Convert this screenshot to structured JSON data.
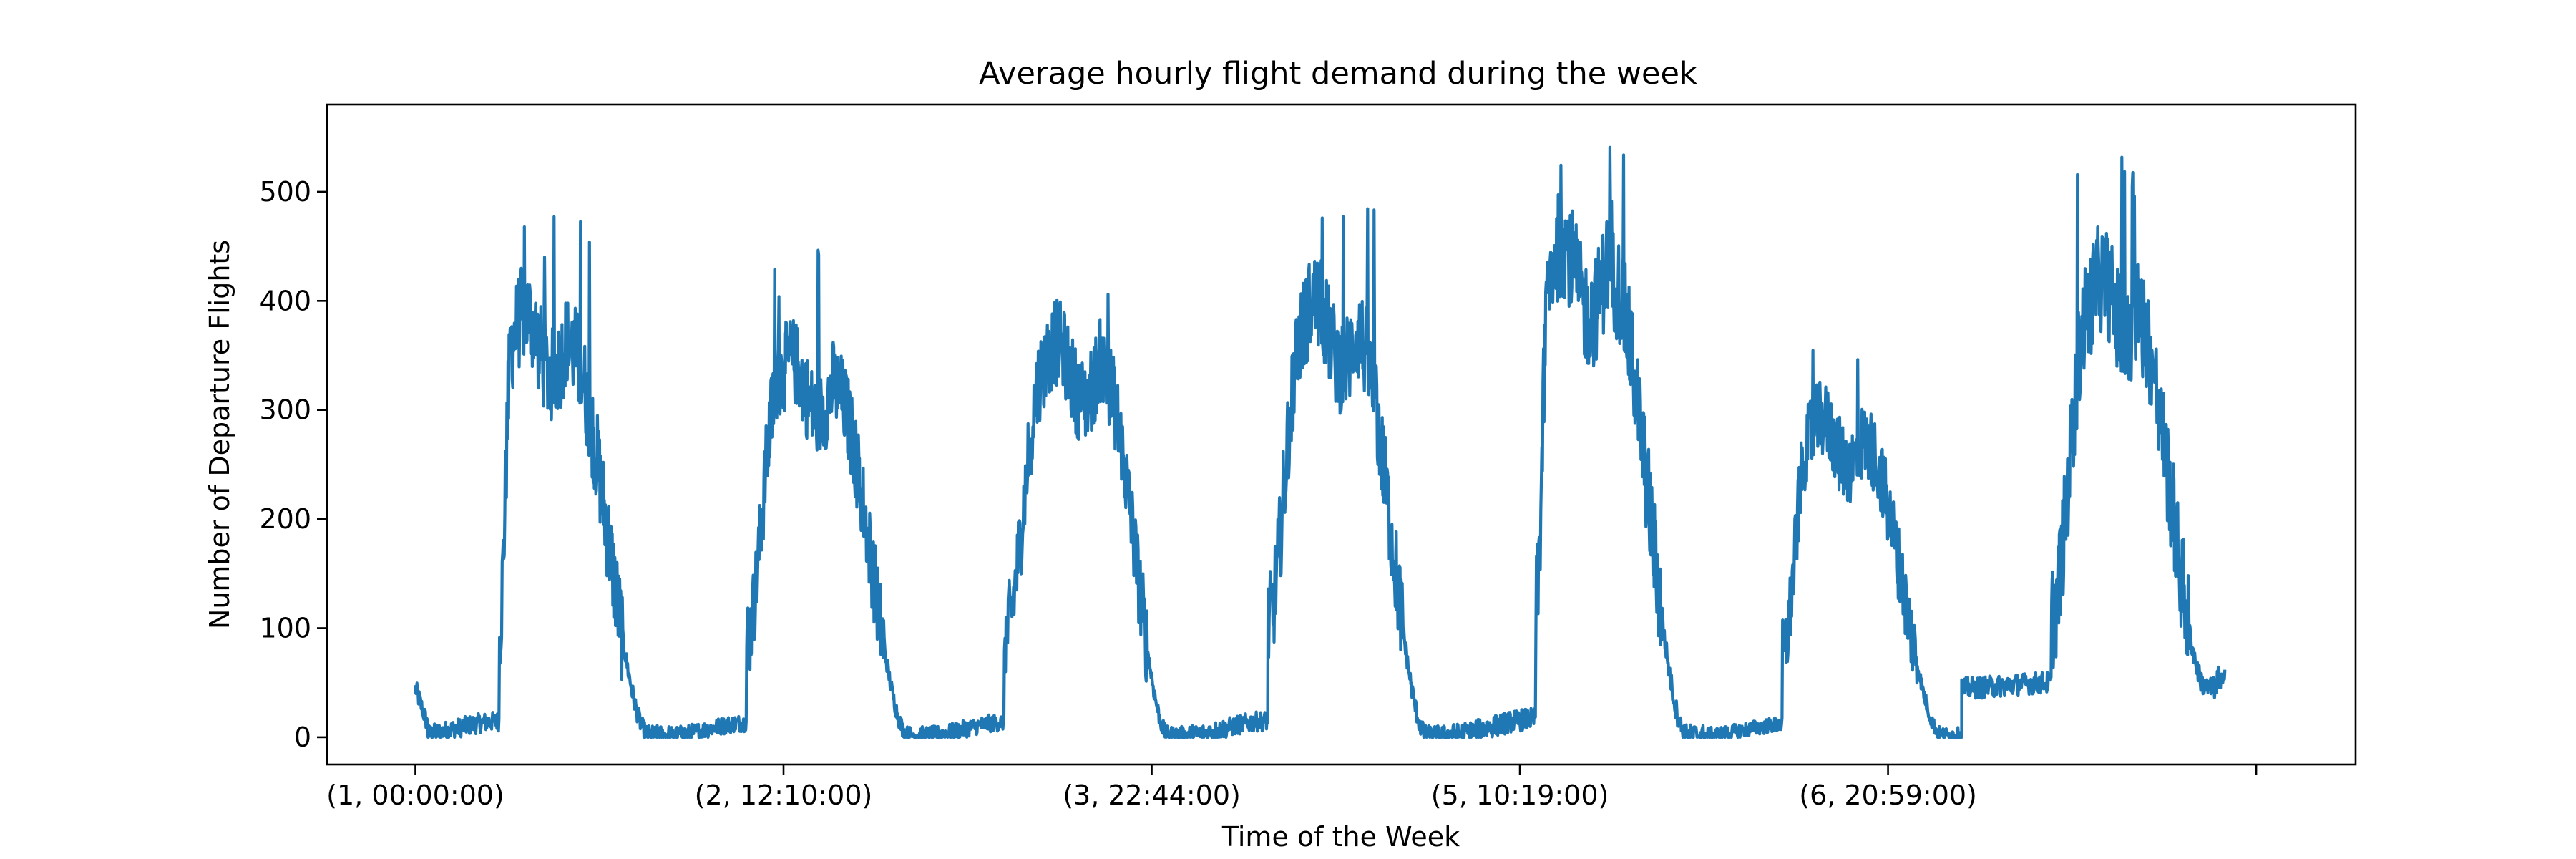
{
  "chart_data": {
    "type": "line",
    "title": "Average hourly flight demand during the week",
    "xlabel": "Time of the Week",
    "ylabel": "Number of Departure Flights",
    "ylim": [
      -25,
      580
    ],
    "yticks": [
      0,
      100,
      200,
      300,
      400,
      500
    ],
    "xlim": [
      -0.24,
      5.27
    ],
    "xticks": [
      {
        "pos": 0,
        "label": "(1, 00:00:00)"
      },
      {
        "pos": 1,
        "label": "(2, 12:10:00)"
      },
      {
        "pos": 2,
        "label": "(3, 22:44:00)"
      },
      {
        "pos": 3,
        "label": "(5, 10:19:00)"
      },
      {
        "pos": 4,
        "label": "(6, 20:59:00)"
      },
      {
        "pos": 5,
        "label": ""
      }
    ],
    "grid": false,
    "legend": "none",
    "series_color": "#1f77b4",
    "days": [
      {
        "start": 0.0,
        "end": 0.69,
        "low": 2,
        "peak": 360,
        "noise": 45,
        "spike": 485,
        "ramp": 0.33,
        "plateau_from": 0.38,
        "plateau_to": 0.6
      },
      {
        "start": 0.69,
        "end": 1.39,
        "low": 2,
        "peak": 320,
        "noise": 40,
        "spike": 450,
        "ramp": 0.3,
        "plateau_from": 0.42,
        "plateau_to": 0.64
      },
      {
        "start": 1.39,
        "end": 2.09,
        "low": 2,
        "peak": 335,
        "noise": 40,
        "spike": 420,
        "ramp": 0.3,
        "plateau_from": 0.45,
        "plateau_to": 0.68
      },
      {
        "start": 2.09,
        "end": 2.795,
        "low": 2,
        "peak": 370,
        "noise": 45,
        "spike": 490,
        "ramp": 0.32,
        "plateau_from": 0.45,
        "plateau_to": 0.66
      },
      {
        "start": 2.795,
        "end": 3.505,
        "low": 2,
        "peak": 420,
        "noise": 50,
        "spike": 545,
        "ramp": 0.35,
        "plateau_from": 0.4,
        "plateau_to": 0.64
      },
      {
        "start": 3.505,
        "end": 4.2,
        "low": 2,
        "peak": 270,
        "noise": 35,
        "spike": 375,
        "ramp": 0.3,
        "plateau_from": 0.4,
        "plateau_to": 0.62
      },
      {
        "start": 4.2,
        "end": 4.915,
        "low": 45,
        "peak": 390,
        "noise": 50,
        "spike": 550,
        "ramp": 0.34,
        "plateau_from": 0.48,
        "plateau_to": 0.66
      }
    ]
  }
}
